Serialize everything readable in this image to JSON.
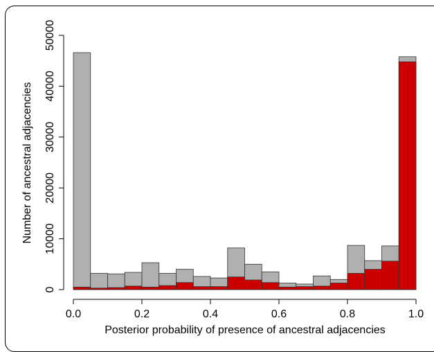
{
  "chart_data": {
    "type": "bar",
    "title": "",
    "xlabel": "Posterior probability of presence of ancestral adjacencies",
    "ylabel": "Number of ancestral adjacencies",
    "xlim": [
      0,
      1
    ],
    "ylim": [
      0,
      50000
    ],
    "x_ticks": [
      "0.0",
      "0.2",
      "0.4",
      "0.6",
      "0.8",
      "1.0"
    ],
    "y_ticks": [
      "0",
      "10000",
      "20000",
      "30000",
      "40000",
      "50000"
    ],
    "bin_edges": [
      0.0,
      0.05,
      0.1,
      0.15,
      0.2,
      0.25,
      0.3,
      0.35,
      0.4,
      0.45,
      0.5,
      0.55,
      0.6,
      0.65,
      0.7,
      0.75,
      0.8,
      0.85,
      0.9,
      0.95,
      1.0
    ],
    "series": [
      {
        "color": "#b0b0b0",
        "values": [
          46600,
          3200,
          3100,
          3400,
          5300,
          3200,
          4000,
          2600,
          2300,
          8200,
          5000,
          3500,
          1300,
          1100,
          2700,
          2000,
          8700,
          5700,
          8600,
          45800
        ]
      },
      {
        "color": "#cc0000",
        "values": [
          500,
          300,
          400,
          700,
          500,
          800,
          1400,
          600,
          600,
          2500,
          1900,
          1400,
          500,
          600,
          700,
          1300,
          3200,
          4000,
          5600,
          44800
        ]
      }
    ],
    "grid": false
  }
}
